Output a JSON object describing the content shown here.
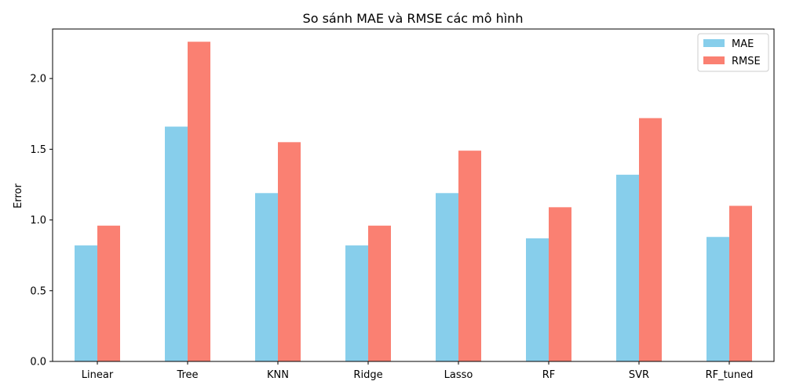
{
  "chart_data": {
    "type": "bar",
    "title": "So sánh MAE và RMSE các mô hình",
    "xlabel": "",
    "ylabel": "Error",
    "categories": [
      "Linear",
      "Tree",
      "KNN",
      "Ridge",
      "Lasso",
      "RF",
      "SVR",
      "RF_tuned"
    ],
    "series": [
      {
        "name": "MAE",
        "color": "#87CEEB",
        "values": [
          0.82,
          1.66,
          1.19,
          0.82,
          1.19,
          0.87,
          1.32,
          0.88
        ]
      },
      {
        "name": "RMSE",
        "color": "#FA8072",
        "values": [
          0.96,
          2.26,
          1.55,
          0.96,
          1.49,
          1.09,
          1.72,
          1.1
        ]
      }
    ],
    "ylim": [
      0,
      2.35
    ],
    "yticks": [
      "0.0",
      "0.5",
      "1.0",
      "1.5",
      "2.0"
    ],
    "legend_position": "top-right",
    "grid": false
  }
}
